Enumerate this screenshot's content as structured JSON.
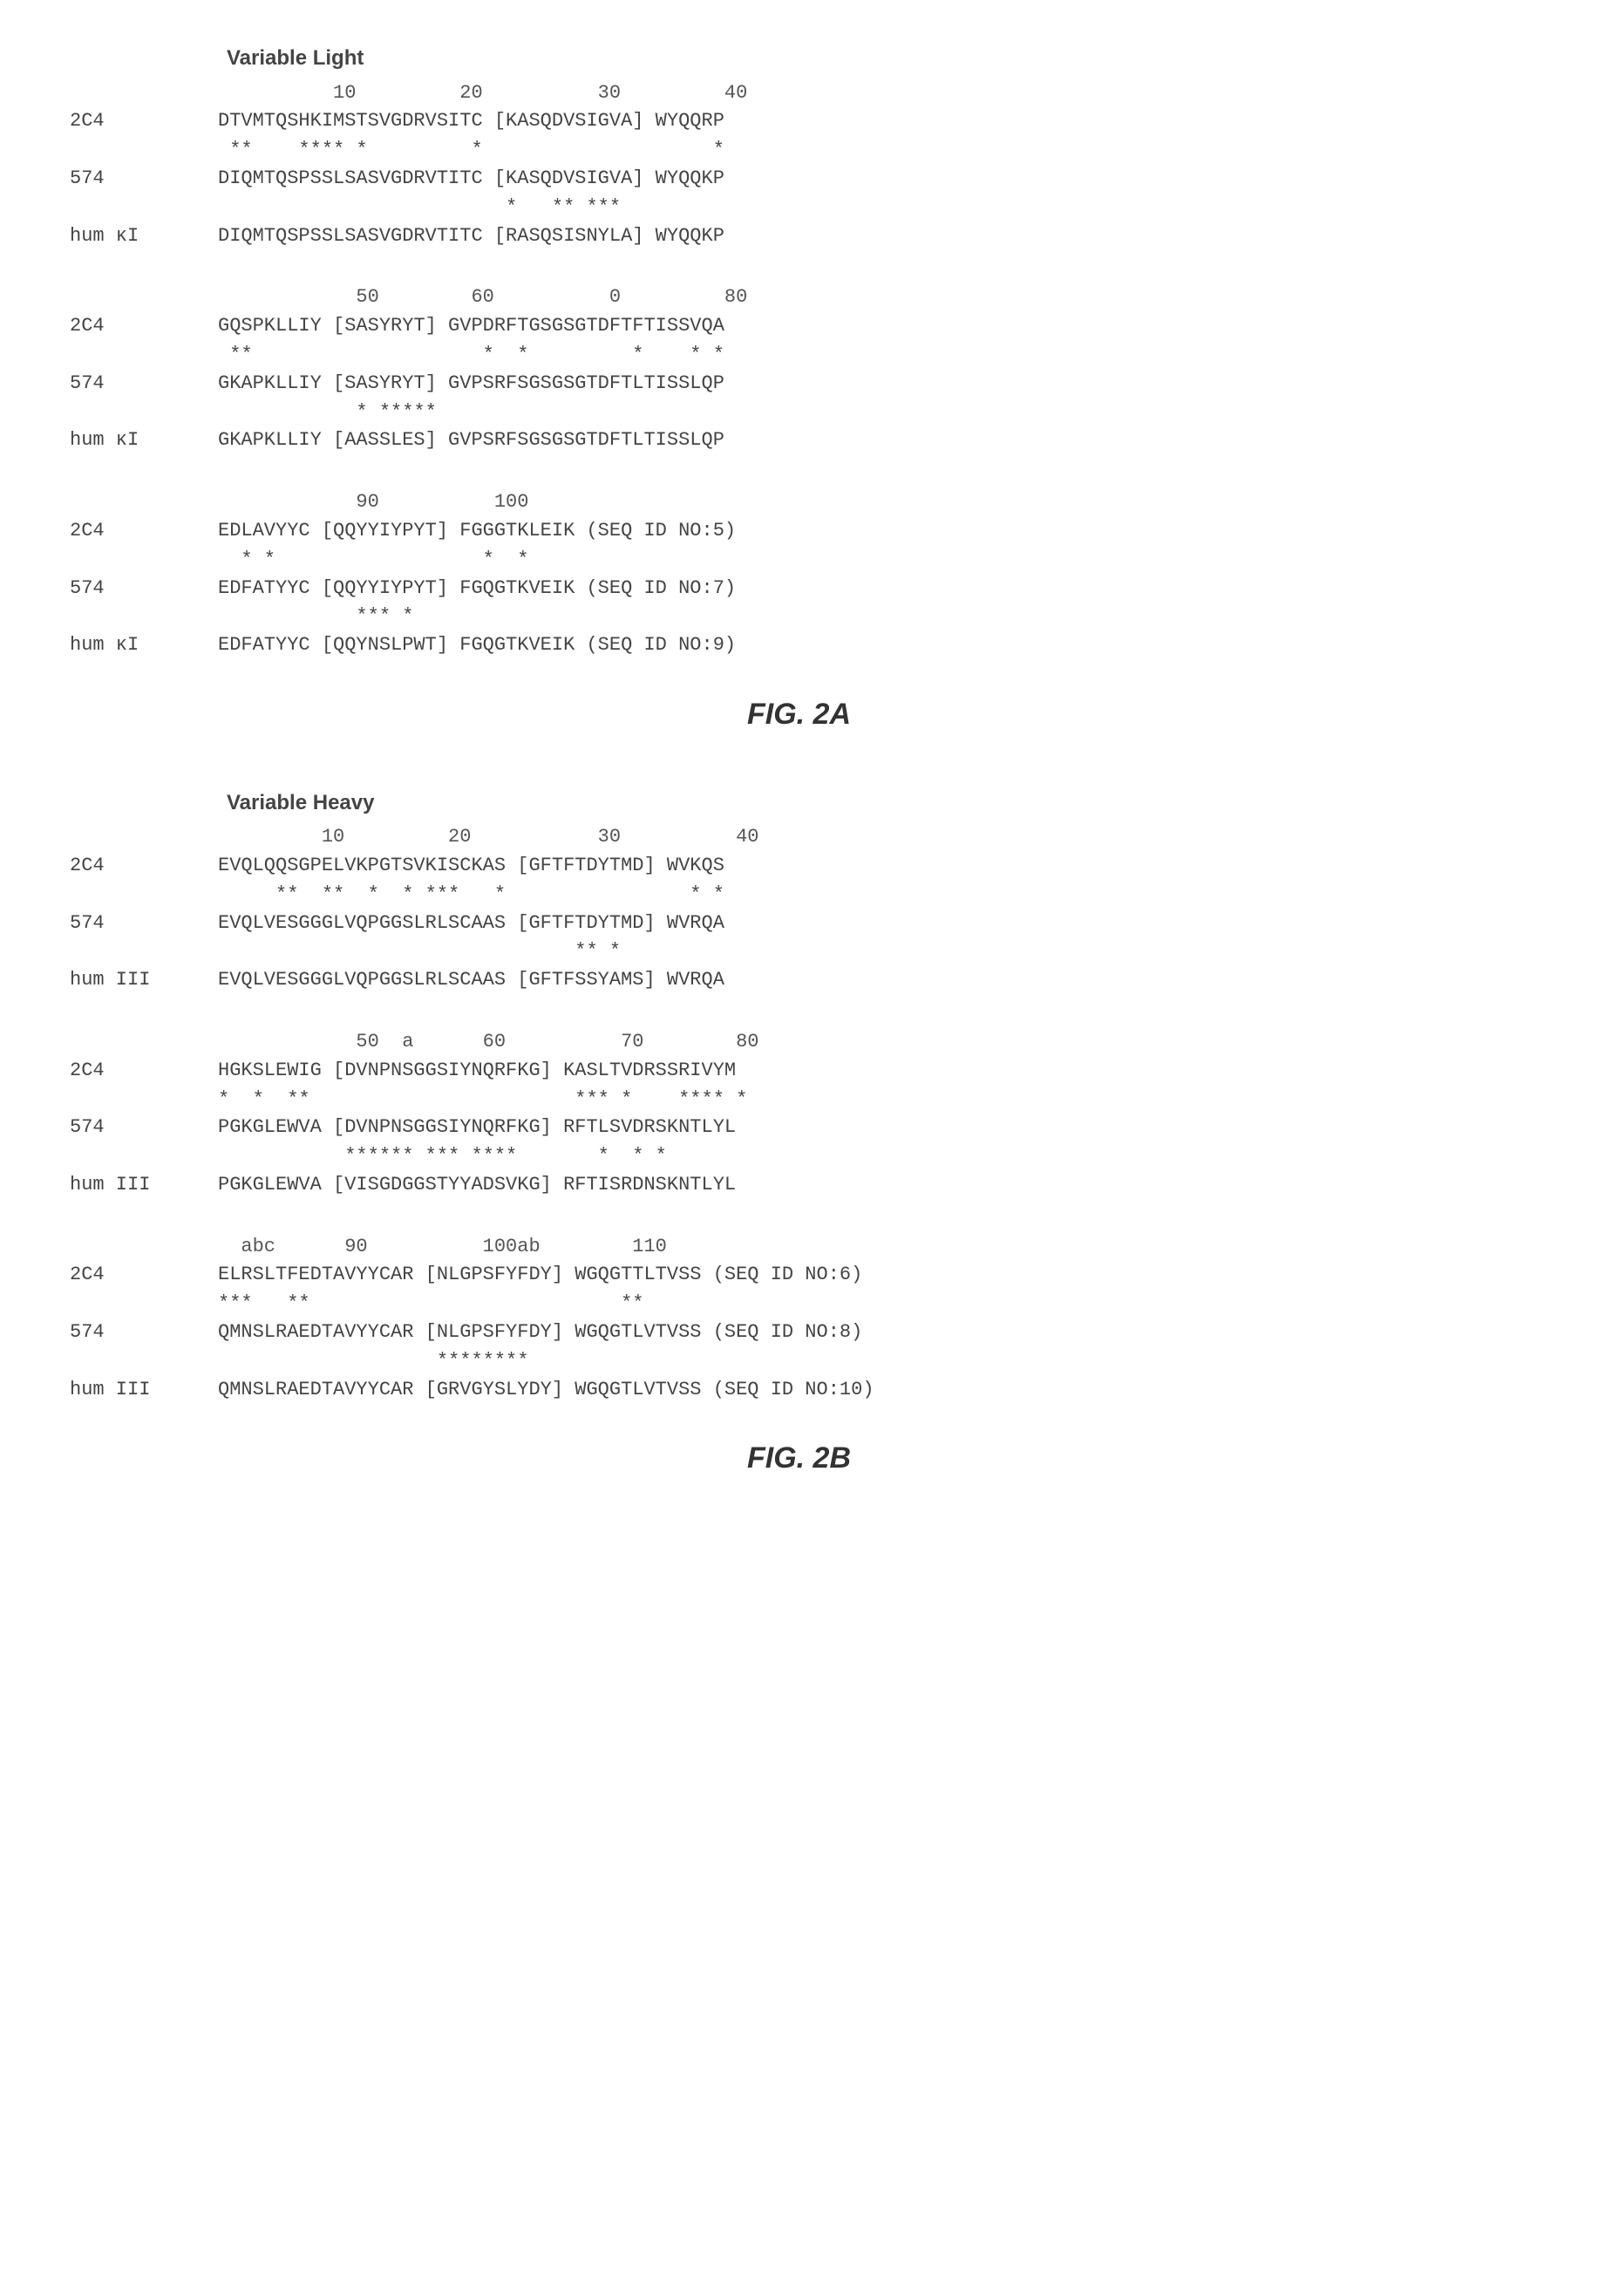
{
  "figA": {
    "title": "Variable Light",
    "caption": "FIG. 2A",
    "blocks": [
      {
        "ruler": "          10         20          30         40",
        "rows": [
          {
            "label": "2C4",
            "seq": "DTVMTQSHKIMSTSVGDRVSITC [KASQDVSIGVA] WYQQRP"
          },
          {
            "label": "",
            "seq": " **    **** *         *                    *"
          },
          {
            "label": "574",
            "seq": "DIQMTQSPSSLSASVGDRVTITC [KASQDVSIGVA] WYQQKP"
          },
          {
            "label": "",
            "seq": "                         *   ** ***          "
          },
          {
            "label": "hum κI",
            "seq": "DIQMTQSPSSLSASVGDRVTITC [RASQSISNYLA] WYQQKP"
          }
        ]
      },
      {
        "ruler": "            50        60          0         80",
        "rows": [
          {
            "label": "2C4",
            "seq": "GQSPKLLIY [SASYRYT] GVPDRFTGSGSGTDFTFTISSVQA"
          },
          {
            "label": "",
            "seq": " **                    *  *         *    * *"
          },
          {
            "label": "574",
            "seq": "GKAPKLLIY [SASYRYT] GVPSRFSGSGSGTDFTLTISSLQP"
          },
          {
            "label": "",
            "seq": "            * *****                          "
          },
          {
            "label": "hum κI",
            "seq": "GKAPKLLIY [AASSLES] GVPSRFSGSGSGTDFTLTISSLQP"
          }
        ]
      },
      {
        "ruler": "            90          100",
        "rows": [
          {
            "label": "2C4",
            "seq": "EDLAVYYC [QQYYIYPYT] FGGGTKLEIK (SEQ ID NO:5)"
          },
          {
            "label": "",
            "seq": "  * *                  *  *"
          },
          {
            "label": "574",
            "seq": "EDFATYYC [QQYYIYPYT] FGQGTKVEIK (SEQ ID NO:7)"
          },
          {
            "label": "",
            "seq": "            *** *"
          },
          {
            "label": "hum κI",
            "seq": "EDFATYYC [QQYNSLPWT] FGQGTKVEIK (SEQ ID NO:9)"
          }
        ]
      }
    ]
  },
  "figB": {
    "title": "Variable Heavy",
    "caption": "FIG. 2B",
    "blocks": [
      {
        "ruler": "         10         20           30          40",
        "rows": [
          {
            "label": "2C4",
            "seq": "EVQLQQSGPELVKPGTSVKISCKAS [GFTFTDYTMD] WVKQS"
          },
          {
            "label": "",
            "seq": "     **  **  *  * ***   *                * *"
          },
          {
            "label": "574",
            "seq": "EVQLVESGGGLVQPGGSLRLSCAAS [GFTFTDYTMD] WVRQA"
          },
          {
            "label": "",
            "seq": "                               ** *         "
          },
          {
            "label": "hum III",
            "seq": "EVQLVESGGGLVQPGGSLRLSCAAS [GFTFSSYAMS] WVRQA"
          }
        ]
      },
      {
        "ruler": "            50  a      60          70        80",
        "rows": [
          {
            "label": "2C4",
            "seq": "HGKSLEWIG [DVNPNSGGSIYNQRFKG] KASLTVDRSSRIVYM"
          },
          {
            "label": "",
            "seq": "*  *  **                       *** *    **** *"
          },
          {
            "label": "574",
            "seq": "PGKGLEWVA [DVNPNSGGSIYNQRFKG] RFTLSVDRSKNTLYL"
          },
          {
            "label": "",
            "seq": "           ****** *** ****       *  * *       "
          },
          {
            "label": "hum III",
            "seq": "PGKGLEWVA [VISGDGGSTYYADSVKG] RFTISRDNSKNTLYL"
          }
        ]
      },
      {
        "ruler": "  abc      90          100ab        110",
        "rows": [
          {
            "label": "2C4",
            "seq": "ELRSLTFEDTAVYYCAR [NLGPSFYFDY] WGQGTTLTVSS (SEQ ID NO:6)"
          },
          {
            "label": "",
            "seq": "***   **                           **"
          },
          {
            "label": "574",
            "seq": "QMNSLRAEDTAVYYCAR [NLGPSFYFDY] WGQGTLVTVSS (SEQ ID NO:8)"
          },
          {
            "label": "",
            "seq": "                   ********"
          },
          {
            "label": "hum III",
            "seq": "QMNSLRAEDTAVYYCAR [GRVGYSLYDY] WGQGTLVTVSS (SEQ ID NO:10)"
          }
        ]
      }
    ]
  }
}
